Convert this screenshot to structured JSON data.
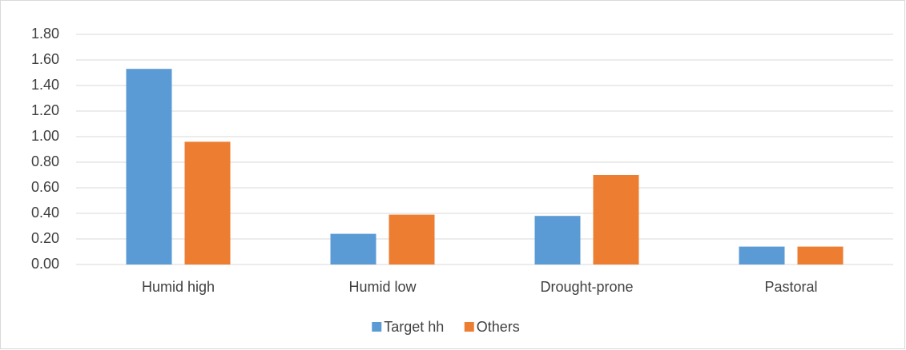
{
  "chart_data": {
    "type": "bar",
    "categories": [
      "Humid high",
      "Humid low",
      "Drought-prone",
      "Pastoral"
    ],
    "series": [
      {
        "name": "Target hh",
        "color": "#5b9bd5",
        "values": [
          1.53,
          0.24,
          0.38,
          0.14
        ]
      },
      {
        "name": "Others",
        "color": "#ed7d31",
        "values": [
          0.96,
          0.39,
          0.7,
          0.14
        ]
      }
    ],
    "ylim": [
      0,
      1.8
    ],
    "yticks": [
      {
        "value": 0,
        "label": "0.00"
      },
      {
        "value": 0.2,
        "label": "0.20"
      },
      {
        "value": 0.4,
        "label": "0.40"
      },
      {
        "value": 0.6,
        "label": "0.60"
      },
      {
        "value": 0.8,
        "label": "0.80"
      },
      {
        "value": 1.0,
        "label": "1.00"
      },
      {
        "value": 1.2,
        "label": "1.20"
      },
      {
        "value": 1.4,
        "label": "1.40"
      },
      {
        "value": 1.6,
        "label": "1.60"
      },
      {
        "value": 1.8,
        "label": "1.80"
      }
    ],
    "grid": true,
    "legend": "bottom"
  }
}
